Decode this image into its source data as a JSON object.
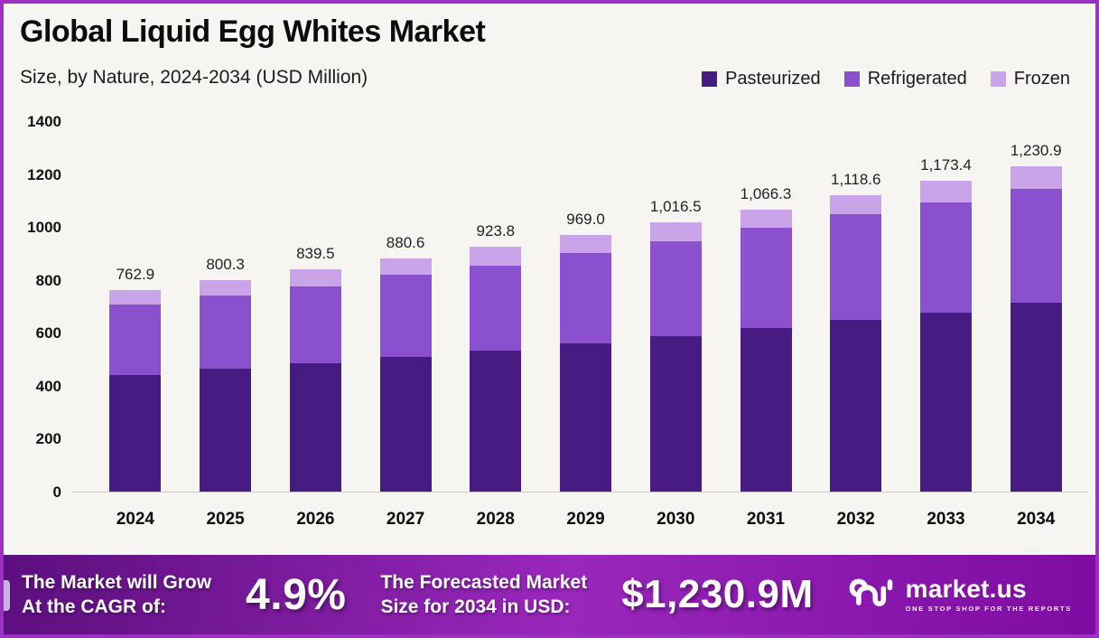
{
  "header": {
    "title": "Global Liquid Egg Whites Market",
    "subtitle": "Size, by Nature, 2024-2034 (USD Million)"
  },
  "chart_data": {
    "type": "bar",
    "stacked": true,
    "title": "Global Liquid Egg Whites Market",
    "subtitle": "Size, by Nature, 2024-2034 (USD Million)",
    "unit": "USD Million",
    "categories": [
      "2024",
      "2025",
      "2026",
      "2027",
      "2028",
      "2029",
      "2030",
      "2031",
      "2032",
      "2033",
      "2034"
    ],
    "series": [
      {
        "name": "Pasteurized",
        "color": "#471c82",
        "values": [
          441.0,
          464.7,
          485.0,
          508.5,
          531.6,
          560.6,
          589.1,
          619.0,
          649.4,
          676.5,
          713.4
        ]
      },
      {
        "name": "Refrigerated",
        "color": "#8a50cd",
        "values": [
          267.0,
          276.3,
          289.7,
          310.7,
          323.3,
          340.3,
          355.6,
          379.0,
          398.9,
          415.4,
          432.4
        ]
      },
      {
        "name": "Frozen",
        "color": "#c9a4e8",
        "values": [
          54.9,
          59.3,
          64.8,
          61.4,
          68.9,
          68.1,
          71.8,
          68.3,
          70.3,
          81.5,
          85.1
        ]
      }
    ],
    "totals": [
      762.9,
      800.3,
      839.5,
      880.6,
      923.8,
      969.0,
      1016.5,
      1066.3,
      1118.6,
      1173.4,
      1230.9
    ],
    "total_labels": [
      "762.9",
      "800.3",
      "839.5",
      "880.6",
      "923.8",
      "969.0",
      "1,016.5",
      "1,066.3",
      "1,118.6",
      "1,173.4",
      "1,230.9"
    ],
    "ylim": [
      0,
      1400
    ],
    "yticks": [
      "1400",
      "1200",
      "1000",
      "800",
      "600",
      "400",
      "200",
      "0"
    ],
    "grid": false,
    "legend_position": "top-right"
  },
  "banner": {
    "cagr_label": "The Market will Grow\nAt the CAGR of:",
    "cagr_value": "4.9%",
    "forecast_label": "The Forecasted Market\nSize for 2034 in USD:",
    "forecast_value": "$1,230.9M",
    "logo_text": "market.us",
    "logo_tagline": "ONE STOP SHOP FOR THE REPORTS"
  },
  "colors": {
    "border": "#9c30c3",
    "background": "#f6f5f2",
    "banner_gradient": [
      "#5c0f7e",
      "#9a27bc",
      "#7e0ba2"
    ],
    "axis_line": "#c9c9c9",
    "accent_stripe": "#cdb0e6"
  }
}
